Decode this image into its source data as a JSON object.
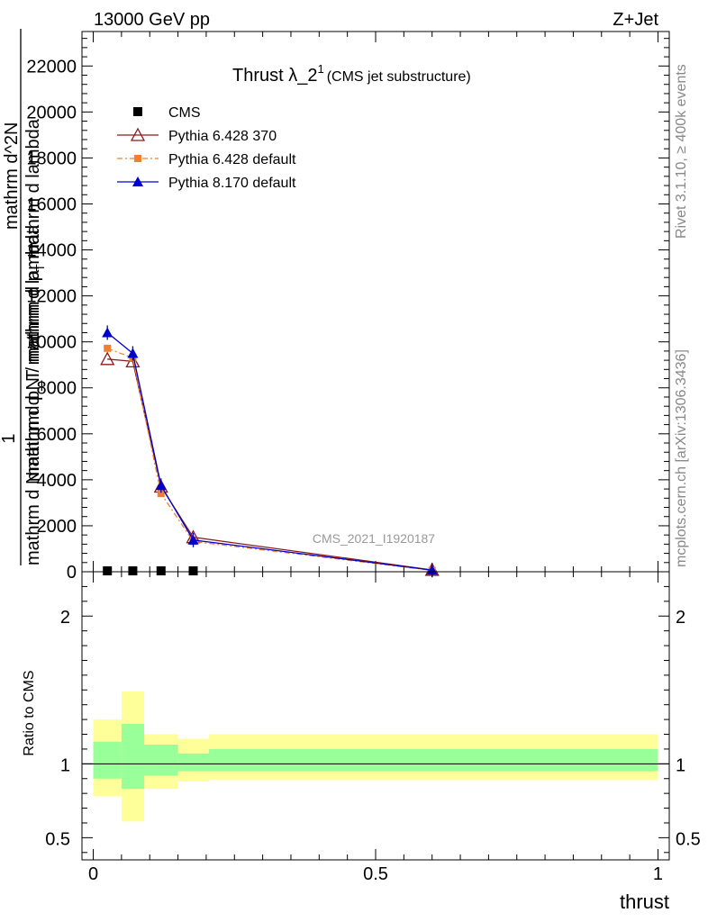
{
  "header": {
    "energy_label": "13000 GeV pp",
    "process_label": "Z+Jet"
  },
  "side_text": {
    "rivet": "Rivet 3.1.10, ≥ 400k events",
    "mcplots": "mcplots.cern.ch [arXiv:1306.3436]"
  },
  "watermark": "CMS_2021_I1920187",
  "chart_data": [
    {
      "type": "line",
      "title_main": "Thrust λ_2",
      "title_sup": "1",
      "title_sub": "(CMS jet substructure)",
      "ylabel_num": "1",
      "ylabel_den_top": "mathrm d N",
      "ylabel_den_rest": "mathrm d N / mathrm d p",
      "ylabel_den_sub": "T",
      "ylabel_den_end": " mathrm d lambda",
      "ylabel_overlay_1": "mathrm d^2N",
      "ylabel_overlay_2": "mathrm d p_T mathrm d lambda",
      "ylim": [
        0,
        23500
      ],
      "xlim": [
        -0.02,
        1.02
      ],
      "y_ticks": [
        0,
        2000,
        4000,
        6000,
        8000,
        10000,
        12000,
        14000,
        16000,
        18000,
        20000,
        22000
      ],
      "y_tick_labels": [
        "0",
        "2000",
        "4000",
        "6000",
        "8000",
        "10000",
        "12000",
        "14000",
        "16000",
        "18000",
        "20000",
        "22000"
      ],
      "legend_position": "top-left",
      "series": [
        {
          "name": "CMS",
          "color": "#000000",
          "marker": "square",
          "x": [
            0.025,
            0.07,
            0.12,
            0.177
          ],
          "y": [
            0,
            0,
            0,
            0
          ]
        },
        {
          "name": "Pythia 6.428 370",
          "color": "#8b1a1a",
          "marker": "open-triangle",
          "x": [
            0.025,
            0.07,
            0.12,
            0.177,
            0.6
          ],
          "y": [
            9250,
            9150,
            3700,
            1500,
            80
          ]
        },
        {
          "name": "Pythia 6.428 default",
          "color": "#f08030",
          "marker": "small-square",
          "dash": "dashdot",
          "x": [
            0.025,
            0.07,
            0.12,
            0.177,
            0.6
          ],
          "y": [
            9720,
            9300,
            3400,
            1320,
            60
          ]
        },
        {
          "name": "Pythia 8.170 default",
          "color": "#0000cc",
          "marker": "filled-triangle",
          "x": [
            0.025,
            0.07,
            0.12,
            0.177,
            0.6
          ],
          "y": [
            10400,
            9500,
            3750,
            1380,
            70
          ]
        }
      ]
    },
    {
      "type": "area",
      "ylabel": "Ratio to CMS",
      "xlabel": "thrust",
      "ylim": [
        0.35,
        2.3
      ],
      "xlim": [
        -0.02,
        1.02
      ],
      "y_ticks": [
        0.5,
        1,
        2
      ],
      "y_tick_labels": [
        "0.5",
        "1",
        "2"
      ],
      "x_ticks": [
        0,
        0.5,
        1
      ],
      "x_tick_labels": [
        "0",
        "0.5",
        "1"
      ],
      "reference_line": 1,
      "bins": [
        {
          "lo": 0.0,
          "hi": 0.05,
          "yellow": [
            0.78,
            1.3
          ],
          "green": [
            0.9,
            1.15
          ]
        },
        {
          "lo": 0.05,
          "hi": 0.09,
          "yellow": [
            0.61,
            1.49
          ],
          "green": [
            0.83,
            1.27
          ]
        },
        {
          "lo": 0.09,
          "hi": 0.15,
          "yellow": [
            0.83,
            1.2
          ],
          "green": [
            0.92,
            1.13
          ]
        },
        {
          "lo": 0.15,
          "hi": 0.205,
          "yellow": [
            0.88,
            1.17
          ],
          "green": [
            0.95,
            1.07
          ]
        },
        {
          "lo": 0.205,
          "hi": 1.0,
          "yellow": [
            0.89,
            1.2
          ],
          "green": [
            0.95,
            1.1
          ]
        }
      ],
      "colors": {
        "yellow": "#ffff99",
        "green": "#99ff99"
      }
    }
  ]
}
